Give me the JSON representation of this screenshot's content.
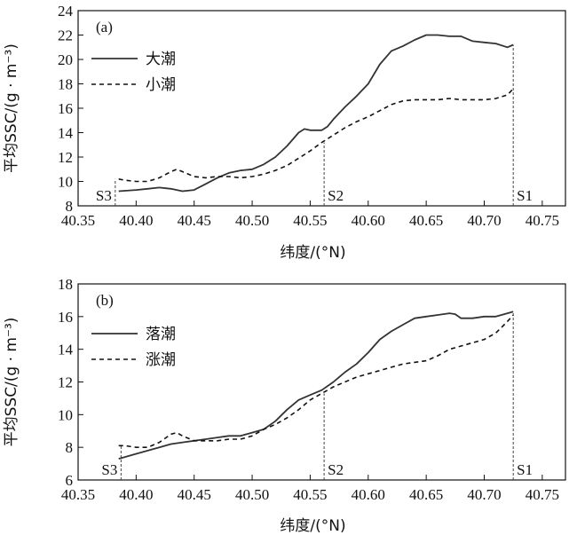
{
  "chart_data": [
    {
      "type": "line",
      "panel": "(a)",
      "xlabel": "纬度/(°N)",
      "ylabel": "平均SSC/(g · m⁻³)",
      "xlim": [
        40.35,
        40.77
      ],
      "ylim": [
        8,
        24
      ],
      "xticks": [
        40.35,
        40.4,
        40.45,
        40.5,
        40.55,
        40.6,
        40.65,
        40.7,
        40.75
      ],
      "xtick_labels": [
        "40.35",
        "40.40",
        "40.45",
        "40.50",
        "40.55",
        "40.60",
        "40.65",
        "40.70",
        "40.75"
      ],
      "yticks": [
        8,
        10,
        12,
        14,
        16,
        18,
        20,
        22,
        24
      ],
      "ytick_labels": [
        "8",
        "10",
        "12",
        "14",
        "16",
        "18",
        "20",
        "22",
        "24"
      ],
      "legend_position": "top-left",
      "series": [
        {
          "name": "大潮",
          "style": "solid",
          "x": [
            40.385,
            40.4,
            40.41,
            40.42,
            40.43,
            40.44,
            40.45,
            40.46,
            40.47,
            40.48,
            40.49,
            40.5,
            40.51,
            40.52,
            40.53,
            40.54,
            40.545,
            40.55,
            40.56,
            40.565,
            40.57,
            40.58,
            40.59,
            40.6,
            40.61,
            40.62,
            40.63,
            40.64,
            40.65,
            40.66,
            40.67,
            40.68,
            40.69,
            40.7,
            40.71,
            40.72,
            40.725
          ],
          "y": [
            9.2,
            9.3,
            9.4,
            9.5,
            9.4,
            9.2,
            9.3,
            9.8,
            10.3,
            10.7,
            10.9,
            11.0,
            11.4,
            12.0,
            12.9,
            14.0,
            14.3,
            14.2,
            14.2,
            14.5,
            15.1,
            16.1,
            17.0,
            18.0,
            19.6,
            20.7,
            21.1,
            21.6,
            22.0,
            22.0,
            21.9,
            21.9,
            21.5,
            21.4,
            21.3,
            21.0,
            21.2
          ]
        },
        {
          "name": "小潮",
          "style": "dashed",
          "x": [
            40.385,
            40.39,
            40.4,
            40.41,
            40.42,
            40.43,
            40.435,
            40.44,
            40.45,
            40.46,
            40.47,
            40.48,
            40.49,
            40.5,
            40.51,
            40.52,
            40.53,
            40.54,
            40.55,
            40.56,
            40.57,
            40.58,
            40.59,
            40.6,
            40.61,
            40.62,
            40.63,
            40.64,
            40.65,
            40.66,
            40.67,
            40.68,
            40.69,
            40.7,
            40.71,
            40.72,
            40.725
          ],
          "y": [
            10.2,
            10.1,
            10.0,
            10.0,
            10.3,
            10.8,
            11.0,
            10.8,
            10.4,
            10.3,
            10.4,
            10.4,
            10.3,
            10.4,
            10.6,
            10.9,
            11.3,
            11.9,
            12.5,
            13.2,
            13.8,
            14.4,
            14.9,
            15.3,
            15.8,
            16.3,
            16.6,
            16.7,
            16.7,
            16.7,
            16.8,
            16.7,
            16.7,
            16.7,
            16.8,
            17.1,
            17.6
          ]
        }
      ],
      "stations": [
        {
          "label": "S3",
          "x": 40.382,
          "y_top": 10.2
        },
        {
          "label": "S2",
          "x": 40.562,
          "y_top": 13.2
        },
        {
          "label": "S1",
          "x": 40.725,
          "y_top": 21.2
        }
      ]
    },
    {
      "type": "line",
      "panel": "(b)",
      "xlabel": "纬度/(°N)",
      "ylabel": "平均SSC/(g · m⁻³)",
      "xlim": [
        40.35,
        40.77
      ],
      "ylim": [
        6,
        18
      ],
      "xticks": [
        40.35,
        40.4,
        40.45,
        40.5,
        40.55,
        40.6,
        40.65,
        40.7,
        40.75
      ],
      "xtick_labels": [
        "40.35",
        "40.40",
        "40.45",
        "40.50",
        "40.55",
        "40.60",
        "40.65",
        "40.70",
        "40.75"
      ],
      "yticks": [
        6,
        8,
        10,
        12,
        14,
        16,
        18
      ],
      "ytick_labels": [
        "6",
        "8",
        "10",
        "12",
        "14",
        "16",
        "18"
      ],
      "legend_position": "top-left",
      "series": [
        {
          "name": "落潮",
          "style": "solid",
          "x": [
            40.385,
            40.4,
            40.41,
            40.42,
            40.43,
            40.44,
            40.45,
            40.46,
            40.47,
            40.48,
            40.49,
            40.5,
            40.51,
            40.52,
            40.53,
            40.54,
            40.55,
            40.56,
            40.57,
            40.58,
            40.59,
            40.6,
            40.61,
            40.62,
            40.63,
            40.64,
            40.65,
            40.66,
            40.67,
            40.675,
            40.68,
            40.69,
            40.7,
            40.71,
            40.72,
            40.725
          ],
          "y": [
            7.3,
            7.6,
            7.8,
            8.0,
            8.2,
            8.3,
            8.4,
            8.5,
            8.6,
            8.7,
            8.7,
            8.9,
            9.1,
            9.6,
            10.3,
            10.9,
            11.2,
            11.5,
            12.0,
            12.6,
            13.1,
            13.8,
            14.6,
            15.1,
            15.5,
            15.9,
            16.0,
            16.1,
            16.2,
            16.15,
            15.9,
            15.9,
            16.0,
            16.0,
            16.2,
            16.3
          ]
        },
        {
          "name": "涨潮",
          "style": "dashed",
          "x": [
            40.385,
            40.39,
            40.4,
            40.41,
            40.42,
            40.43,
            40.435,
            40.44,
            40.45,
            40.46,
            40.47,
            40.48,
            40.49,
            40.5,
            40.51,
            40.52,
            40.53,
            40.54,
            40.55,
            40.56,
            40.57,
            40.58,
            40.59,
            40.6,
            40.61,
            40.62,
            40.63,
            40.64,
            40.65,
            40.66,
            40.67,
            40.68,
            40.69,
            40.7,
            40.71,
            40.72,
            40.725
          ],
          "y": [
            8.1,
            8.1,
            8.0,
            8.0,
            8.3,
            8.8,
            8.9,
            8.7,
            8.4,
            8.4,
            8.4,
            8.5,
            8.5,
            8.7,
            9.1,
            9.4,
            9.8,
            10.3,
            10.9,
            11.3,
            11.7,
            12.0,
            12.3,
            12.5,
            12.7,
            12.9,
            13.1,
            13.2,
            13.3,
            13.6,
            14.0,
            14.2,
            14.4,
            14.6,
            15.0,
            15.7,
            16.1
          ]
        }
      ],
      "stations": [
        {
          "label": "S3",
          "x": 40.387,
          "y_top": 8.1
        },
        {
          "label": "S2",
          "x": 40.562,
          "y_top": 11.3
        },
        {
          "label": "S1",
          "x": 40.725,
          "y_top": 16.3
        }
      ]
    }
  ]
}
